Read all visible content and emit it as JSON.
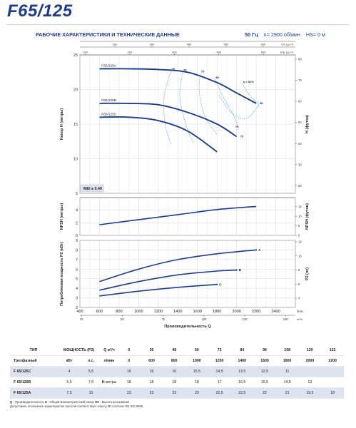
{
  "header": {
    "title": "F65/125",
    "subtitle": "РАБОЧИЕ ХАРАКТЕРИСТИКИ И ТЕХНИЧЕСКИЕ ДАННЫЕ",
    "frequency": "50 Гц",
    "speed": "n= 2900 об/мин",
    "hs": "HS= 0 м"
  },
  "colors": {
    "curve": "#1d3c8c",
    "efficiency": "#4aa8dc",
    "accent": "#1d3c8c",
    "grid": "#d8dce6",
    "shade": "#dde3ef"
  },
  "chart_data": [
    {
      "type": "line",
      "name": "head-chart",
      "ylabel": "Напор H (метры)",
      "ylabel_right": "H (футов)",
      "xlim": [
        400,
        2600
      ],
      "ylim": [
        5,
        25
      ],
      "yticks": [
        "5",
        "10",
        "15",
        "20",
        "25"
      ],
      "right_ylim": [
        16.4,
        82
      ],
      "right_ticks": [
        "20",
        "30",
        "40",
        "50",
        "60",
        "70",
        "80"
      ],
      "top_axes": [
        {
          "unit": "US g.p.m.",
          "per_lmin": 0.26417,
          "ticks": [
            "100",
            "200",
            "300",
            "400",
            "500",
            "600"
          ]
        },
        {
          "unit": "Imp g.p.m.",
          "per_lmin": 0.21997,
          "ticks": [
            "100",
            "200",
            "300",
            "400",
            "500"
          ]
        }
      ],
      "series": [
        {
          "name": "F65/125A",
          "x": [
            600,
            900,
            1200,
            1500,
            1800,
            2000,
            2200
          ],
          "y": [
            23,
            23,
            22.9,
            22.5,
            21,
            19.5,
            18
          ]
        },
        {
          "name": "F65/125B",
          "x": [
            600,
            900,
            1200,
            1500,
            1800,
            2000
          ],
          "y": [
            18,
            18,
            17.8,
            16.7,
            15,
            13.2
          ]
        },
        {
          "name": "F65/125C",
          "x": [
            600,
            900,
            1200,
            1500,
            1800
          ],
          "y": [
            16,
            16,
            15.5,
            14,
            11
          ]
        }
      ],
      "efficiency_labels": [
        {
          "text": "70",
          "x": 1330,
          "y": 22.75
        },
        {
          "text": "73",
          "x": 1450,
          "y": 22.6
        },
        {
          "text": "75",
          "x": 1630,
          "y": 22.35
        },
        {
          "text": "80",
          "x": 1780,
          "y": 21.5
        },
        {
          "text": "η = 81%",
          "x": 2060,
          "y": 20.9
        },
        {
          "text": "80",
          "x": 2230,
          "y": 17.8
        },
        {
          "text": "75",
          "x": 1980,
          "y": 14.4
        },
        {
          "text": "73",
          "x": 2030,
          "y": 13
        }
      ],
      "mei": "MEI ≥ 0.40"
    },
    {
      "type": "line",
      "name": "npsh-chart",
      "ylabel": "NPSH (метры)",
      "ylabel_right": "NPSH (футов)",
      "xlim": [
        400,
        2600
      ],
      "ylim": [
        0,
        6
      ],
      "yticks": [
        "0",
        "2",
        "4"
      ],
      "right_ticks": [
        "0",
        "5",
        "10",
        "15"
      ],
      "series": [
        {
          "name": "NPSH",
          "x": [
            600,
            1000,
            1400,
            1800,
            2200
          ],
          "y": [
            1.7,
            2.5,
            3.3,
            4.1,
            4.6
          ]
        }
      ]
    },
    {
      "type": "line",
      "name": "power-chart",
      "ylabel": "Потребляемая мощность P2 (кВт)",
      "ylabel_right": "P2 (лс)",
      "xlim": [
        400,
        2600
      ],
      "ylim": [
        2,
        9
      ],
      "yticks": [
        "2",
        "3",
        "4",
        "5",
        "6",
        "7",
        "8",
        "9"
      ],
      "right_ylim": [
        2.7,
        12.2
      ],
      "right_ticks": [
        "4",
        "6",
        "8",
        "10",
        "12"
      ],
      "xticks": [
        "400",
        "600",
        "800",
        "1000",
        "1200",
        "1400",
        "1600",
        "1800",
        "2000",
        "2200",
        "2400"
      ],
      "xunit": "l/min",
      "bottom_axis": {
        "unit": "m³/h",
        "per_lmin": 0.06,
        "ticks": [
          "25",
          "50",
          "75",
          "100",
          "125",
          "150"
        ]
      },
      "xlabel": "Производительность Q",
      "series": [
        {
          "name": "A",
          "x": [
            600,
            1000,
            1400,
            1800,
            2200
          ],
          "y": [
            4.7,
            6.0,
            7.0,
            7.6,
            8.0
          ]
        },
        {
          "name": "B",
          "x": [
            600,
            1000,
            1400,
            1800,
            2000
          ],
          "y": [
            3.8,
            4.7,
            5.4,
            5.8,
            5.9
          ]
        },
        {
          "name": "C",
          "x": [
            600,
            1000,
            1400,
            1800
          ],
          "y": [
            3.2,
            3.7,
            4.1,
            4.4
          ]
        }
      ]
    }
  ],
  "table": {
    "h_type": "ТИП",
    "h_power": "МОЩНОСТЬ (P2)",
    "h_q_symbol": "Q",
    "h_q_unit1": "м³/ч",
    "h_q_unit2": "л/мин",
    "h_phase": "Трехфазный",
    "h_kw": "кВт",
    "h_hp": "л.с.",
    "h_symbol": "H",
    "h_unit": "метры",
    "q_m3h": [
      "0",
      "36",
      "48",
      "60",
      "72",
      "84",
      "96",
      "108",
      "120",
      "132"
    ],
    "q_lmin": [
      "0",
      "600",
      "800",
      "1000",
      "1200",
      "1400",
      "1600",
      "1800",
      "2000",
      "2200"
    ],
    "rows": [
      {
        "model": "F 65/125C",
        "kw": "4",
        "hp": "5,5",
        "h": [
          "16",
          "16",
          "16",
          "15,5",
          "14,5",
          "13,5",
          "12,5",
          "11",
          "",
          ""
        ]
      },
      {
        "model": "F 65/125B",
        "kw": "5,5",
        "hp": "7,5",
        "h": [
          "18",
          "18",
          "18",
          "18",
          "17",
          "16,5",
          "15,5",
          "14,5",
          "13",
          ""
        ]
      },
      {
        "model": "F 65/125A",
        "kw": "7,5",
        "hp": "10",
        "h": [
          "23",
          "23",
          "23",
          "23",
          "22,5",
          "22,5",
          "22",
          "21",
          "19,5",
          "18"
        ]
      }
    ]
  },
  "footnote": {
    "q_abbr": "Q",
    "q_text": " - Производительность  ",
    "h_abbr": "H",
    "h_text": " - Общий манометрический напор  ",
    "hs_abbr": "HS",
    "hs_text": " - Высота всасывания",
    "line2": "Допустимое отклонение характеристик насосов соответствует классу 3B согласно EN ISO 9906."
  }
}
